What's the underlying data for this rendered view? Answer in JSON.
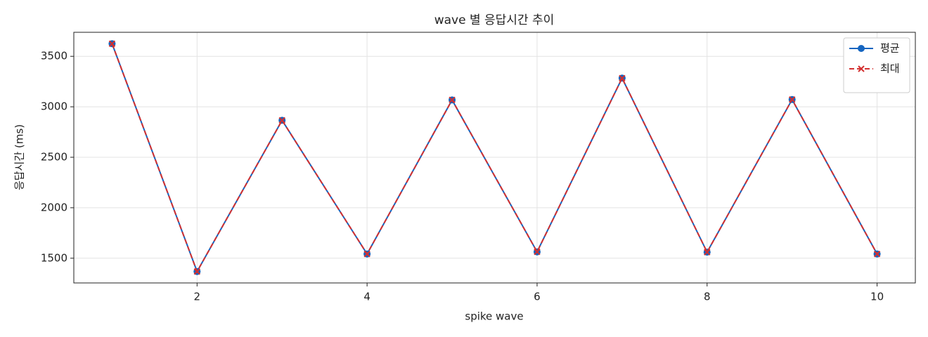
{
  "chart_data": {
    "type": "line",
    "title": "wave 별 응답시간 추이",
    "x_label": "spike wave",
    "y_label": "응답시간 (ms)",
    "x": [
      1,
      2,
      3,
      4,
      5,
      6,
      7,
      8,
      9,
      10
    ],
    "series": [
      {
        "name": "평균",
        "color": "#1565c0",
        "marker": "circle",
        "dash": false,
        "values": [
          3625,
          1368,
          2866,
          1542,
          3068,
          1563,
          3284,
          1560,
          3072,
          1542
        ]
      },
      {
        "name": "최대",
        "color": "#d32f2f",
        "marker": "x",
        "dash": true,
        "values": [
          3625,
          1368,
          2866,
          1542,
          3068,
          1563,
          3284,
          1560,
          3072,
          1542
        ]
      }
    ],
    "xlim": [
      0.55,
      10.45
    ],
    "xticks": [
      2,
      4,
      6,
      8,
      10
    ],
    "ylim": [
      1255,
      3738
    ],
    "yticks": [
      1500,
      2000,
      2500,
      3000,
      3500
    ],
    "grid": true,
    "legend": "upper-right"
  }
}
